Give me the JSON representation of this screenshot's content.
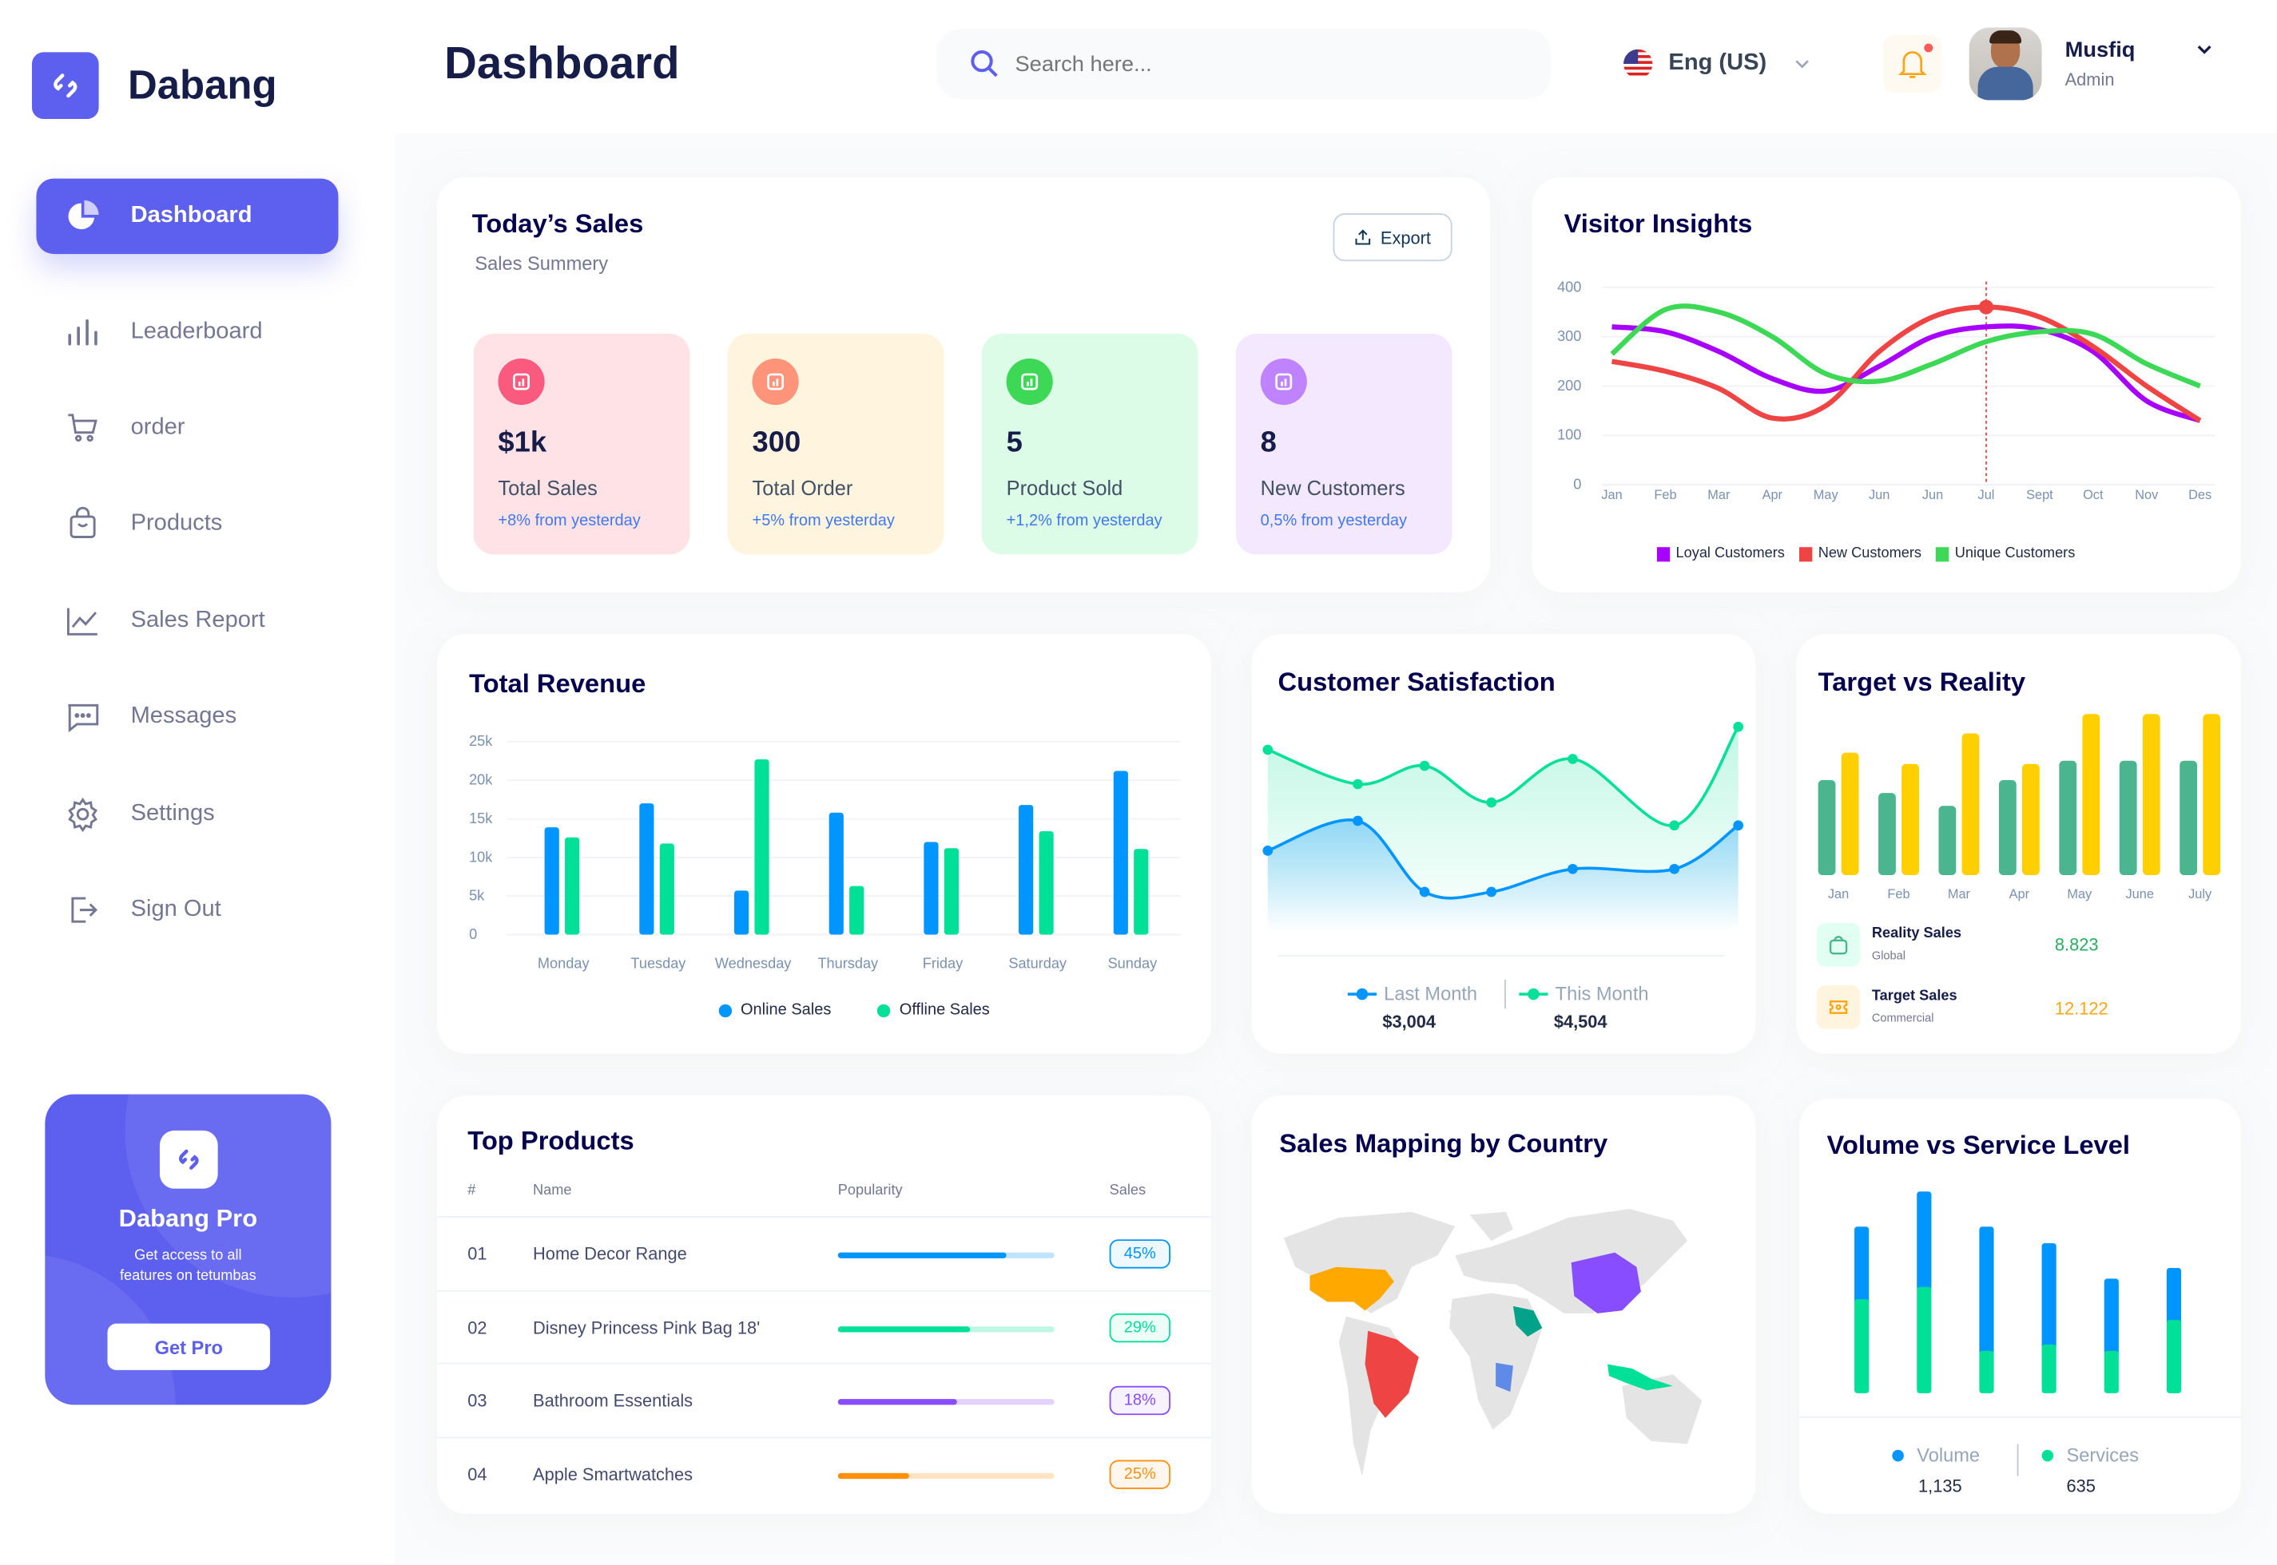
{
  "brand": {
    "name": "Dabang",
    "accent": "#5d5fef"
  },
  "sidebar": {
    "items": [
      {
        "label": "Dashboard",
        "icon": "pie-chart-icon",
        "active": true
      },
      {
        "label": "Leaderboard",
        "icon": "bar-chart-icon"
      },
      {
        "label": "order",
        "icon": "cart-icon"
      },
      {
        "label": "Products",
        "icon": "shopping-bag-icon"
      },
      {
        "label": "Sales Report",
        "icon": "line-chart-icon"
      },
      {
        "label": "Messages",
        "icon": "message-icon"
      },
      {
        "label": "Settings",
        "icon": "gear-icon"
      },
      {
        "label": "Sign Out",
        "icon": "sign-out-icon"
      }
    ],
    "promo": {
      "title": "Dabang Pro",
      "text1": "Get access to all",
      "text2": "features on tetumbas",
      "button": "Get Pro"
    }
  },
  "header": {
    "title": "Dashboard",
    "search_placeholder": "Search here...",
    "language": "Eng (US)",
    "user": {
      "name": "Musfiq",
      "role": "Admin"
    },
    "has_notification": true
  },
  "todays_sales": {
    "title": "Today’s Sales",
    "subtitle": "Sales Summery",
    "export": "Export",
    "cards": [
      {
        "value": "$1k",
        "label": "Total Sales",
        "change": "+8% from yesterday",
        "bg": "#ffe2e5",
        "icon_bg": "#fa5a7d",
        "icon": "chart-icon"
      },
      {
        "value": "300",
        "label": "Total Order",
        "change": "+5% from yesterday",
        "bg": "#fff4de",
        "icon_bg": "#ff947a",
        "icon": "document-icon"
      },
      {
        "value": "5",
        "label": "Product Sold",
        "change": "+1,2% from yesterday",
        "bg": "#dcfce7",
        "icon_bg": "#3cd856",
        "icon": "tag-icon"
      },
      {
        "value": "8",
        "label": "New Customers",
        "change": "0,5% from yesterday",
        "bg": "#f3e8ff",
        "icon_bg": "#bf83ff",
        "icon": "add-user-icon"
      }
    ]
  },
  "chart_data": [
    {
      "id": "visitor",
      "type": "line",
      "title": "Visitor Insights",
      "categories": [
        "Jan",
        "Feb",
        "Mar",
        "Apr",
        "May",
        "Jun",
        "Jun",
        "Jul",
        "Sept",
        "Oct",
        "Nov",
        "Des"
      ],
      "yticks": [
        "0",
        "100",
        "200",
        "300",
        "400"
      ],
      "ylim": [
        0,
        400
      ],
      "legend": "bottom",
      "highlight": {
        "category_index": 7,
        "series": "New Customers"
      },
      "series": [
        {
          "name": "Loyal Customers",
          "color": "#a700ff",
          "values": [
            320,
            310,
            270,
            215,
            190,
            240,
            300,
            320,
            315,
            270,
            170,
            130
          ]
        },
        {
          "name": "New Customers",
          "color": "#ef4444",
          "values": [
            250,
            230,
            195,
            135,
            160,
            270,
            340,
            360,
            340,
            280,
            200,
            130
          ]
        },
        {
          "name": "Unique Customers",
          "color": "#3cd856",
          "values": [
            265,
            355,
            350,
            300,
            225,
            210,
            245,
            290,
            310,
            305,
            245,
            200
          ]
        }
      ]
    },
    {
      "id": "revenue",
      "type": "bar",
      "title": "Total Revenue",
      "categories": [
        "Monday",
        "Tuesday",
        "Wednesday",
        "Thursday",
        "Friday",
        "Saturday",
        "Sunday"
      ],
      "yticks": [
        "0",
        "5k",
        "10k",
        "15k",
        "20k",
        "25k"
      ],
      "ylim": [
        0,
        25000
      ],
      "legend": "bottom",
      "series": [
        {
          "name": "Online Sales",
          "color": "#0095ff",
          "values": [
            13900,
            17000,
            5700,
            15800,
            12000,
            16800,
            21200
          ]
        },
        {
          "name": "Offline Sales",
          "color": "#00e096",
          "values": [
            12600,
            11800,
            22700,
            6300,
            11200,
            13400,
            11100
          ]
        }
      ]
    },
    {
      "id": "satisfaction",
      "type": "area",
      "title": "Customer Satisfaction",
      "legend": "bottom",
      "series": [
        {
          "name": "Last Month",
          "color": "#0095ff",
          "total": "$3,004",
          "values": [
            36,
            49,
            18,
            18,
            28,
            28,
            47
          ]
        },
        {
          "name": "This Month",
          "color": "#07e098",
          "total": "$4,504",
          "values": [
            80,
            65,
            73,
            57,
            76,
            47,
            90
          ]
        }
      ]
    },
    {
      "id": "target",
      "type": "bar",
      "title": "Target vs Reality",
      "categories": [
        "Jan",
        "Feb",
        "Mar",
        "Apr",
        "May",
        "June",
        "July"
      ],
      "series": [
        {
          "name": "Reality Sales",
          "sub": "Global",
          "total": "8.823",
          "color": "#4ab58e",
          "values": [
            5.9,
            5.1,
            4.3,
            5.9,
            7.1,
            7.1,
            7.1
          ]
        },
        {
          "name": "Target Sales",
          "sub": "Commercial",
          "total": "12.122",
          "color": "#ffcf00",
          "values": [
            7.6,
            6.9,
            8.8,
            6.9,
            10,
            10,
            10
          ]
        }
      ]
    },
    {
      "id": "volume",
      "type": "stacked-bar",
      "title": "Volume vs Service Level",
      "legend": "bottom",
      "series": [
        {
          "name": "Volume",
          "total": "1,135",
          "color": "#0095ff",
          "values": [
            272,
            358,
            466,
            380,
            271,
            195
          ]
        },
        {
          "name": "Services",
          "total": "635",
          "color": "#00e096",
          "values": [
            353,
            399,
            159,
            183,
            159,
            275
          ]
        }
      ]
    }
  ],
  "top_products": {
    "title": "Top Products",
    "columns": [
      "#",
      "Name",
      "Popularity",
      "Sales"
    ],
    "rows": [
      {
        "num": "01",
        "name": "Home Decor Range",
        "popularity": 0.78,
        "sales": "45%",
        "color": "#0095ff"
      },
      {
        "num": "02",
        "name": "Disney Princess Pink Bag 18'",
        "popularity": 0.61,
        "sales": "29%",
        "color": "#00e096"
      },
      {
        "num": "03",
        "name": "Bathroom Essentials",
        "popularity": 0.55,
        "sales": "18%",
        "color": "#884dff"
      },
      {
        "num": "04",
        "name": "Apple Smartwatches",
        "popularity": 0.33,
        "sales": "25%",
        "color": "#ff8f0d"
      }
    ]
  },
  "sales_map": {
    "title": "Sales Mapping by Country",
    "highlighted": [
      {
        "region": "USA",
        "color": "#ffa800"
      },
      {
        "region": "Brazil",
        "color": "#ef4444"
      },
      {
        "region": "China",
        "color": "#884dff"
      },
      {
        "region": "Saudi Arabia",
        "color": "#00a389"
      },
      {
        "region": "Congo",
        "color": "#5f8ae8"
      },
      {
        "region": "Indonesia",
        "color": "#00e096"
      }
    ]
  }
}
